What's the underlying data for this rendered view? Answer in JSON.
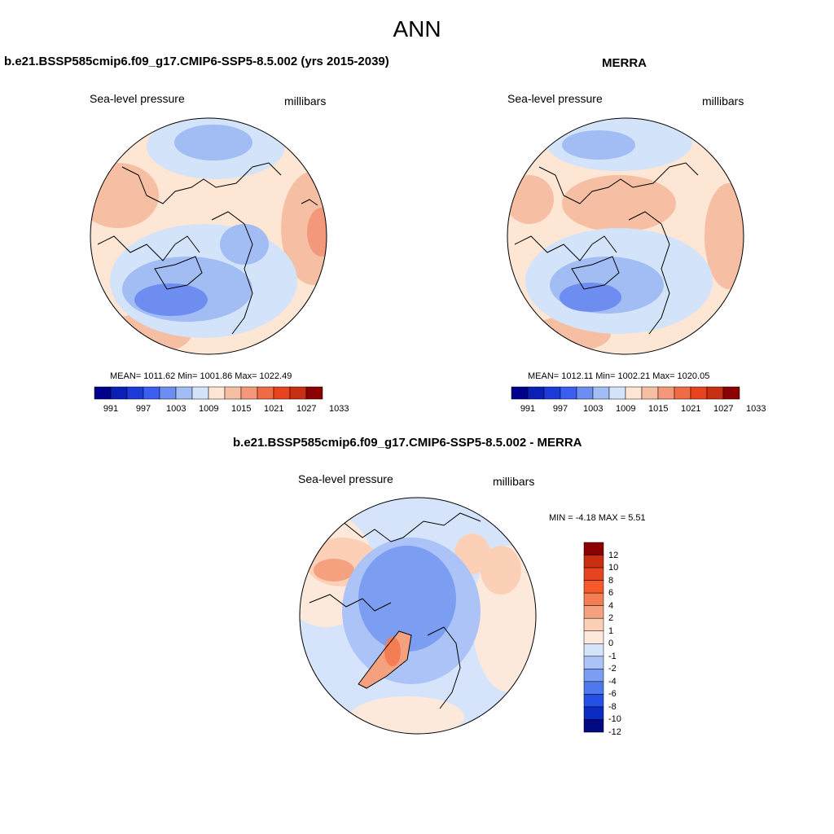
{
  "figure": {
    "title": "ANN"
  },
  "panels": {
    "model": {
      "title": "b.e21.BSSP585cmip6.f09_g17.CMIP6-SSP5-8.5.002 (yrs 2015-2039)",
      "variable": "Sea-level pressure",
      "units": "millibars",
      "stats": "MEAN= 1011.62  Min= 1001.86  Max= 1022.49",
      "colorbar_labels": [
        "991",
        "997",
        "1003",
        "1009",
        "1015",
        "1021",
        "1027",
        "1033"
      ]
    },
    "obs": {
      "title": "MERRA",
      "variable": "Sea-level pressure",
      "units": "millibars",
      "stats": "MEAN= 1012.11  Min= 1002.21  Max= 1020.05",
      "colorbar_labels": [
        "991",
        "997",
        "1003",
        "1009",
        "1015",
        "1021",
        "1027",
        "1033"
      ]
    },
    "diff": {
      "title": "b.e21.BSSP585cmip6.f09_g17.CMIP6-SSP5-8.5.002 - MERRA",
      "variable": "Sea-level pressure",
      "units": "millibars",
      "stats": "MIN =  -4.18 MAX =   5.51",
      "colorbar_labels": [
        "12",
        "10",
        "8",
        "6",
        "4",
        "2",
        "1",
        "0",
        "-1",
        "-2",
        "-4",
        "-6",
        "-8",
        "-10",
        "-12"
      ]
    }
  },
  "colors": {
    "abs_scale": [
      "#00008b",
      "#0a1fb5",
      "#1c3ad8",
      "#3a5ff0",
      "#6d8ef0",
      "#a2bcf4",
      "#d3e3fa",
      "#fde6d4",
      "#f6bfa3",
      "#f3987a",
      "#f06a43",
      "#e7431f",
      "#c72e12",
      "#8b0000"
    ],
    "diff_scale": [
      "#8b0000",
      "#c72e12",
      "#e7431f",
      "#f65a2a",
      "#f47e54",
      "#f5a07f",
      "#fcd0b6",
      "#fde9dc",
      "#d6e4fb",
      "#abc3f6",
      "#7c9ef2",
      "#4f78ee",
      "#2450e6",
      "#0a2bc4",
      "#00097f"
    ]
  }
}
